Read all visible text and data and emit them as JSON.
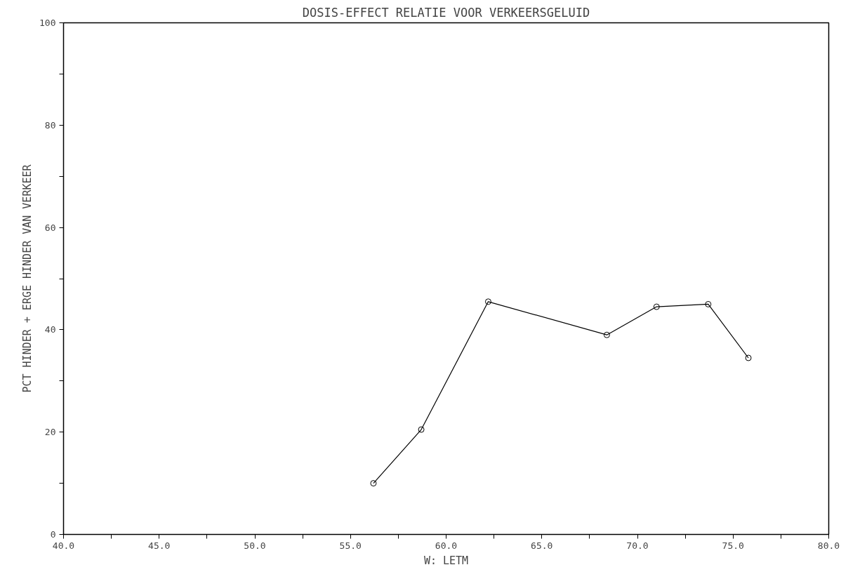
{
  "chart_data": {
    "type": "line",
    "title": "DOSIS-EFFECT RELATIE VOOR VERKEERSGELUID",
    "xlabel": "W: LETM",
    "ylabel": "PCT HINDER + ERGE HINDER VAN VERKEER",
    "x": [
      56.2,
      58.7,
      62.2,
      68.4,
      71.0,
      73.7,
      75.8
    ],
    "series": [
      {
        "color": "#000000",
        "values": [
          10,
          20.5,
          45.5,
          39,
          44.5,
          45,
          34.5
        ]
      }
    ],
    "xlim": [
      40,
      80
    ],
    "xticks": [
      {
        "value": 40,
        "label": "40.0"
      },
      {
        "value": 42.5,
        "label": null
      },
      {
        "value": 45,
        "label": "45.0"
      },
      {
        "value": 47.5,
        "label": null
      },
      {
        "value": 50,
        "label": "50.0"
      },
      {
        "value": 52.5,
        "label": null
      },
      {
        "value": 55,
        "label": "55.0"
      },
      {
        "value": 57.5,
        "label": null
      },
      {
        "value": 60,
        "label": "60.0"
      },
      {
        "value": 62.5,
        "label": null
      },
      {
        "value": 65,
        "label": "65.0"
      },
      {
        "value": 67.5,
        "label": null
      },
      {
        "value": 70,
        "label": "70.0"
      },
      {
        "value": 72.5,
        "label": null
      },
      {
        "value": 75,
        "label": "75.0"
      },
      {
        "value": 77.5,
        "label": null
      },
      {
        "value": 80,
        "label": "80.0"
      }
    ],
    "ylim": [
      0,
      100
    ],
    "yticks": [
      0,
      {
        "value": 10,
        "label": null
      },
      20,
      {
        "value": 30,
        "label": null
      },
      40,
      {
        "value": 50,
        "label": null
      },
      60,
      {
        "value": 70,
        "label": null
      },
      80,
      {
        "value": 90,
        "label": null
      },
      100
    ],
    "grid": false,
    "marker": "circle",
    "line_style": "solid"
  }
}
